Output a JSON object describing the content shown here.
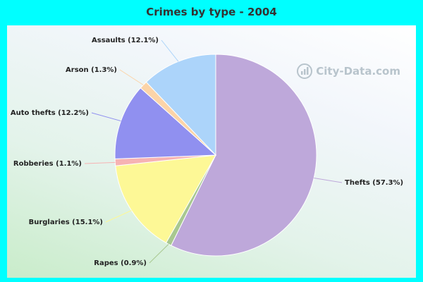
{
  "chart_data": {
    "type": "pie",
    "title": "Crimes by type - 2004",
    "slices": [
      {
        "label": "Thefts (57.3%)",
        "name": "Thefts",
        "value": 57.3,
        "color": "#bea8da"
      },
      {
        "label": "Rapes (0.9%)",
        "name": "Rapes",
        "value": 0.9,
        "color": "#a8c890"
      },
      {
        "label": "Burglaries (15.1%)",
        "name": "Burglaries",
        "value": 15.1,
        "color": "#fdf896"
      },
      {
        "label": "Robberies (1.1%)",
        "name": "Robberies",
        "value": 1.1,
        "color": "#f6b3b3"
      },
      {
        "label": "Auto thefts (12.2%)",
        "name": "Auto thefts",
        "value": 12.2,
        "color": "#9090f0"
      },
      {
        "label": "Arson (1.3%)",
        "name": "Arson",
        "value": 1.3,
        "color": "#fcd4a8"
      },
      {
        "label": "Assaults (12.1%)",
        "name": "Assaults",
        "value": 12.1,
        "color": "#acd4fa"
      }
    ]
  },
  "watermark": {
    "text": "City-Data.com"
  }
}
